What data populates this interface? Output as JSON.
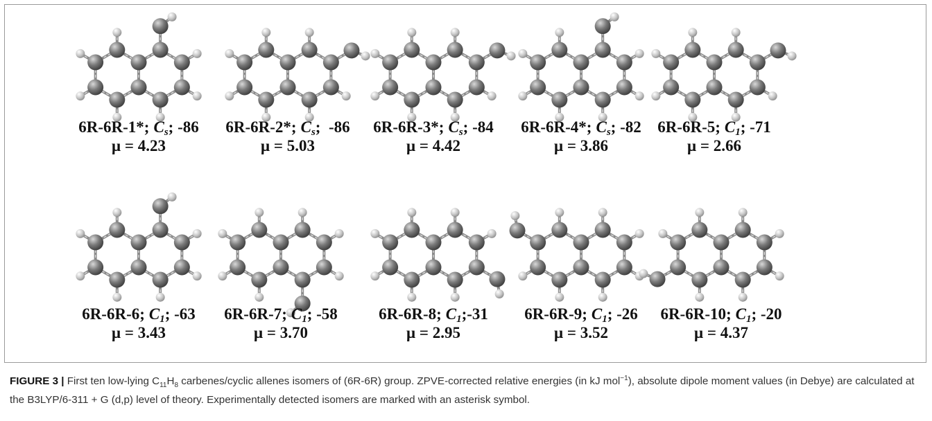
{
  "isomers": [
    {
      "name": "6R-6R-1*;",
      "sym": "C",
      "sub": "s",
      "energy": "; -86",
      "dipole": "μ = 4.23"
    },
    {
      "name": "6R-6R-2*;",
      "sym": "C",
      "sub": "s",
      "energy": ";  -86",
      "dipole": "μ = 5.03"
    },
    {
      "name": "6R-6R-3*;",
      "sym": "C",
      "sub": "s",
      "energy": "; -84",
      "dipole": "μ = 4.42"
    },
    {
      "name": "6R-6R-4*;",
      "sym": "C",
      "sub": "s",
      "energy": "; -82",
      "dipole": "μ = 3.86"
    },
    {
      "name": "6R-6R-5;",
      "sym": "C",
      "sub": "1",
      "energy": "; -71",
      "dipole": "μ = 2.66"
    },
    {
      "name": "6R-6R-6;",
      "sym": "C",
      "sub": "1",
      "energy": "; -63",
      "dipole": "μ = 3.43"
    },
    {
      "name": "6R-6R-7;",
      "sym": "C",
      "sub": "1",
      "energy": "; -58",
      "dipole": "μ = 3.70"
    },
    {
      "name": "6R-6R-8;",
      "sym": "C",
      "sub": "1",
      "energy": ";-31",
      "dipole": "μ = 2.95"
    },
    {
      "name": "6R-6R-9;",
      "sym": "C",
      "sub": "1",
      "energy": "; -26",
      "dipole": "μ = 3.52"
    },
    {
      "name": "6R-6R-10;",
      "sym": "C",
      "sub": "1",
      "energy": "; -20",
      "dipole": "μ = 4.37"
    }
  ],
  "caption": {
    "label": "FIGURE 3 |",
    "text_1": " First ten low-lying C",
    "sub_1": "11",
    "text_2": "H",
    "sub_2": "8",
    "text_3": " carbenes/cyclic allenes isomers of (6R-6R) group. ZPVE-corrected relative energies (in kJ mol",
    "sup_1": "−1",
    "text_4": "), absolute dipole moment values (in Debye) are calculated at the B3LYP/6-311 + G (d,p) level of theory. Experimentally detected isomers are marked with an asterisk symbol."
  }
}
